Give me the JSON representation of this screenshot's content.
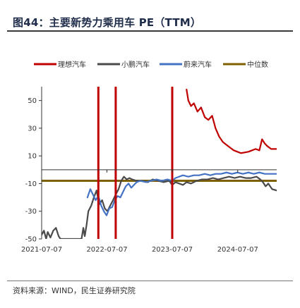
{
  "title": "图44：主要新势力乘用车 PE（TTM）",
  "source": "资料来源：WIND，民生证券研究院",
  "chart_data": {
    "type": "line",
    "title": "图44：主要新势力乘用车 PE（TTM）",
    "xlabel": "",
    "ylabel": "",
    "x_range": [
      "2021-07-07",
      "2025-02-10"
    ],
    "ylim": [
      -50,
      60
    ],
    "x_ticks": [
      "2021-07-07",
      "2022-07-07",
      "2023-07-07",
      "2024-07-07"
    ],
    "y_ticks": [
      50,
      30,
      10,
      -10,
      -30,
      -50
    ],
    "grid": false,
    "legend_position": "top",
    "legend": [
      "理想汽车",
      "小鹏汽车",
      "蔚来汽车",
      "中位数"
    ],
    "vertical_markers": [
      {
        "date": "2022-05-20",
        "color": "#c00000"
      },
      {
        "date": "2022-08-25",
        "color": "#c00000"
      },
      {
        "date": "2023-07-07",
        "color": "#c00000"
      }
    ],
    "series": [
      {
        "name": "理想汽车",
        "color": "#c00000",
        "points": [
          [
            "2023-09-25",
            58
          ],
          [
            "2023-10-05",
            50
          ],
          [
            "2023-10-20",
            46
          ],
          [
            "2023-11-05",
            48
          ],
          [
            "2023-11-25",
            42
          ],
          [
            "2023-12-15",
            45
          ],
          [
            "2024-01-05",
            38
          ],
          [
            "2024-01-25",
            36
          ],
          [
            "2024-02-15",
            39
          ],
          [
            "2024-03-05",
            30
          ],
          [
            "2024-03-25",
            24
          ],
          [
            "2024-04-15",
            20
          ],
          [
            "2024-05-05",
            18
          ],
          [
            "2024-05-25",
            16
          ],
          [
            "2024-06-15",
            14
          ],
          [
            "2024-07-05",
            13
          ],
          [
            "2024-07-25",
            12
          ],
          [
            "2024-08-15",
            12.5
          ],
          [
            "2024-09-05",
            13
          ],
          [
            "2024-09-25",
            14
          ],
          [
            "2024-10-15",
            15
          ],
          [
            "2024-11-05",
            14
          ],
          [
            "2024-11-20",
            22
          ],
          [
            "2024-12-05",
            19
          ],
          [
            "2024-12-20",
            17
          ],
          [
            "2025-01-10",
            15
          ],
          [
            "2025-02-10",
            15
          ]
        ]
      },
      {
        "name": "小鹏汽车",
        "color": "#4a4a4a",
        "points": [
          [
            "2021-07-07",
            -47
          ],
          [
            "2021-07-20",
            -44
          ],
          [
            "2021-08-01",
            -50
          ],
          [
            "2021-08-10",
            -45
          ],
          [
            "2021-08-25",
            -49
          ],
          [
            "2021-09-10",
            -44
          ],
          [
            "2021-09-25",
            -42
          ],
          [
            "2021-10-10",
            -48
          ],
          [
            "2021-10-20",
            -50
          ],
          [
            "2022-02-15",
            -50
          ],
          [
            "2022-02-25",
            -42
          ],
          [
            "2022-03-05",
            -48
          ],
          [
            "2022-03-15",
            -40
          ],
          [
            "2022-03-25",
            -30
          ],
          [
            "2022-04-10",
            -26
          ],
          [
            "2022-04-25",
            -20
          ],
          [
            "2022-05-10",
            -15
          ],
          [
            "2022-05-25",
            -25
          ],
          [
            "2022-06-10",
            -22
          ],
          [
            "2022-06-25",
            -28
          ],
          [
            "2022-07-10",
            -30
          ],
          [
            "2022-07-25",
            -26
          ],
          [
            "2022-08-10",
            -22
          ],
          [
            "2022-08-25",
            -18
          ],
          [
            "2022-09-10",
            -14
          ],
          [
            "2022-09-25",
            -8
          ],
          [
            "2022-10-10",
            -5
          ],
          [
            "2022-10-25",
            -7
          ],
          [
            "2022-11-10",
            -6
          ],
          [
            "2022-11-25",
            -7
          ],
          [
            "2022-12-20",
            -8
          ],
          [
            "2023-01-20",
            -8
          ],
          [
            "2023-02-20",
            -9
          ],
          [
            "2023-03-20",
            -7
          ],
          [
            "2023-04-20",
            -8
          ],
          [
            "2023-05-20",
            -9
          ],
          [
            "2023-06-20",
            -8
          ],
          [
            "2023-07-07",
            -11
          ],
          [
            "2023-07-25",
            -9
          ],
          [
            "2023-08-15",
            -10
          ],
          [
            "2023-09-05",
            -11
          ],
          [
            "2023-09-25",
            -9
          ],
          [
            "2023-10-20",
            -10
          ],
          [
            "2023-11-20",
            -8
          ],
          [
            "2023-12-20",
            -7
          ],
          [
            "2024-01-20",
            -7
          ],
          [
            "2024-02-20",
            -6
          ],
          [
            "2024-03-20",
            -7
          ],
          [
            "2024-04-20",
            -6
          ],
          [
            "2024-05-20",
            -5
          ],
          [
            "2024-06-20",
            -6
          ],
          [
            "2024-07-20",
            -5
          ],
          [
            "2024-08-20",
            -6
          ],
          [
            "2024-09-20",
            -6
          ],
          [
            "2024-10-20",
            -5
          ],
          [
            "2024-11-10",
            -7
          ],
          [
            "2024-11-25",
            -9
          ],
          [
            "2024-12-10",
            -12
          ],
          [
            "2024-12-25",
            -10
          ],
          [
            "2025-01-15",
            -14
          ],
          [
            "2025-02-10",
            -15
          ]
        ]
      },
      {
        "name": "蔚来汽车",
        "color": "#4472c4",
        "points": [
          [
            "2022-03-20",
            -20
          ],
          [
            "2022-04-05",
            -14
          ],
          [
            "2022-04-20",
            -18
          ],
          [
            "2022-05-05",
            -22
          ],
          [
            "2022-05-20",
            -19
          ],
          [
            "2022-06-05",
            -26
          ],
          [
            "2022-06-20",
            -30
          ],
          [
            "2022-07-05",
            -33
          ],
          [
            "2022-07-20",
            -28
          ],
          [
            "2022-08-05",
            -27
          ],
          [
            "2022-08-20",
            -22
          ],
          [
            "2022-09-05",
            -19
          ],
          [
            "2022-09-20",
            -20
          ],
          [
            "2022-10-05",
            -16
          ],
          [
            "2022-10-20",
            -12
          ],
          [
            "2022-11-05",
            -10
          ],
          [
            "2022-11-20",
            -13
          ],
          [
            "2022-12-05",
            -11
          ],
          [
            "2022-12-20",
            -9
          ],
          [
            "2023-01-10",
            -8
          ],
          [
            "2023-02-10",
            -9
          ],
          [
            "2023-03-10",
            -8
          ],
          [
            "2023-04-10",
            -7
          ],
          [
            "2023-05-10",
            -8
          ],
          [
            "2023-06-10",
            -7
          ],
          [
            "2023-07-07",
            -8
          ],
          [
            "2023-07-25",
            -6
          ],
          [
            "2023-08-15",
            -5
          ],
          [
            "2023-09-05",
            -4
          ],
          [
            "2023-10-05",
            -5
          ],
          [
            "2023-11-05",
            -4
          ],
          [
            "2023-12-05",
            -4
          ],
          [
            "2024-01-05",
            -3
          ],
          [
            "2024-02-05",
            -4
          ],
          [
            "2024-03-05",
            -3
          ],
          [
            "2024-04-05",
            -3
          ],
          [
            "2024-05-05",
            -2
          ],
          [
            "2024-06-05",
            -3
          ],
          [
            "2024-07-05",
            -2
          ],
          [
            "2024-08-05",
            -3
          ],
          [
            "2024-09-05",
            -2
          ],
          [
            "2024-10-05",
            -3
          ],
          [
            "2024-11-05",
            -2
          ],
          [
            "2024-12-05",
            -3
          ],
          [
            "2025-01-05",
            -3
          ],
          [
            "2025-02-10",
            -3
          ]
        ]
      },
      {
        "name": "中位数",
        "color": "#7f6000",
        "points": [
          [
            "2021-07-07",
            -8
          ],
          [
            "2025-02-10",
            -8
          ]
        ]
      }
    ]
  }
}
